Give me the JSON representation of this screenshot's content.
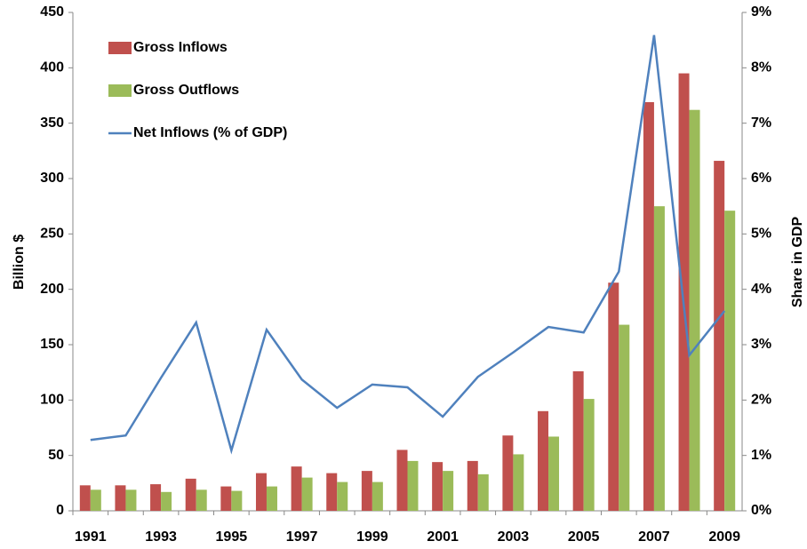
{
  "chart_data": {
    "type": "bar-line",
    "categories": [
      "1991",
      null,
      "1993",
      null,
      "1995",
      null,
      "1997",
      null,
      "1999",
      null,
      "2001",
      null,
      "2003",
      null,
      "2005",
      null,
      "2007",
      null,
      "2009"
    ],
    "y_label": "Billion $",
    "y2_label": "Share in GDP",
    "series": [
      {
        "name": "Gross Inflows",
        "type": "bar",
        "color": "#c0504d",
        "values": [
          23,
          23,
          24,
          29,
          22,
          34,
          40,
          34,
          36,
          55,
          44,
          45,
          68,
          90,
          126,
          206,
          369,
          395,
          316
        ]
      },
      {
        "name": "Gross Outflows",
        "type": "bar",
        "color": "#9bbb59",
        "values": [
          19,
          19,
          17,
          19,
          18,
          22,
          30,
          26,
          26,
          45,
          36,
          33,
          51,
          67,
          101,
          168,
          275,
          362,
          271
        ]
      },
      {
        "name": "Net Inflows (% of GDP)",
        "type": "line",
        "axis": "y2",
        "color": "#4f81bd",
        "values": [
          1.28,
          1.36,
          2.4,
          3.4,
          1.09,
          3.27,
          2.37,
          1.86,
          2.28,
          2.23,
          1.7,
          2.42,
          2.86,
          3.32,
          3.22,
          4.32,
          8.59,
          2.81,
          3.61
        ]
      }
    ],
    "ylim": [
      0,
      450
    ],
    "yticks": [
      0,
      50,
      100,
      150,
      200,
      250,
      300,
      350,
      400,
      450
    ],
    "y2lim": [
      0,
      9
    ],
    "y2ticks": [
      {
        "value": 0,
        "label": "0%"
      },
      {
        "value": 1,
        "label": "1%"
      },
      {
        "value": 2,
        "label": "2%"
      },
      {
        "value": 3,
        "label": "3%"
      },
      {
        "value": 4,
        "label": "4%"
      },
      {
        "value": 5,
        "label": "5%"
      },
      {
        "value": 6,
        "label": "6%"
      },
      {
        "value": 7,
        "label": "7%"
      },
      {
        "value": 8,
        "label": "8%"
      },
      {
        "value": 9,
        "label": "9%"
      }
    ],
    "legend": "top-left"
  }
}
